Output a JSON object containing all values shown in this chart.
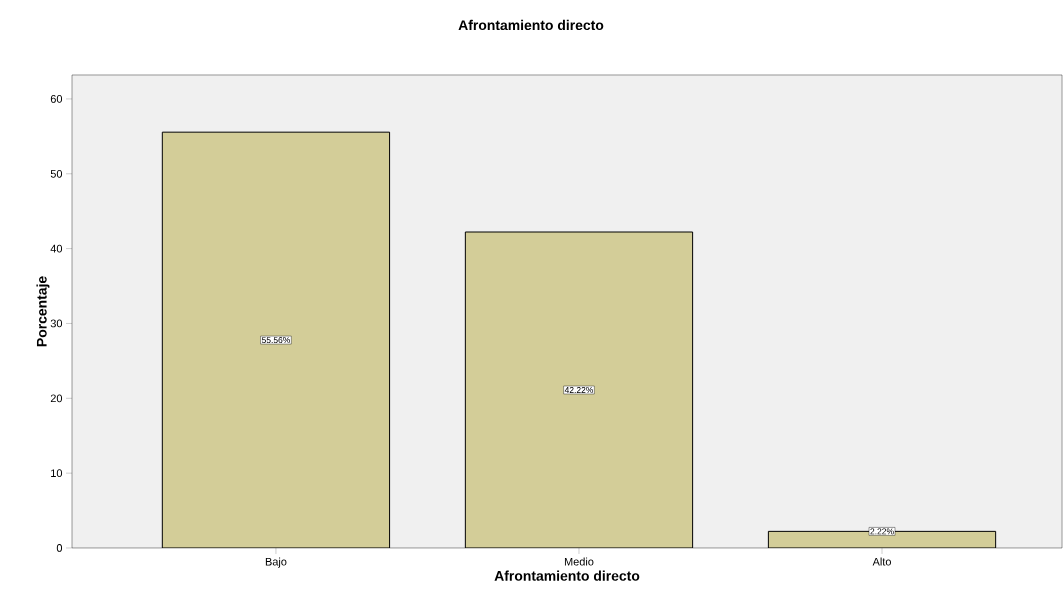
{
  "chart_data": {
    "type": "bar",
    "title": "Afrontamiento directo",
    "xlabel": "Afrontamiento directo",
    "ylabel": "Porcentaje",
    "categories": [
      "Bajo",
      "Medio",
      "Alto"
    ],
    "values": [
      55.56,
      42.22,
      2.22
    ],
    "value_labels": [
      "55.56%",
      "42.22%",
      "2.22%"
    ],
    "color": "#d3cd98",
    "ylim": [
      0,
      63.2
    ],
    "yticks": [
      0,
      10,
      20,
      30,
      40,
      50,
      60
    ],
    "grid": false
  }
}
